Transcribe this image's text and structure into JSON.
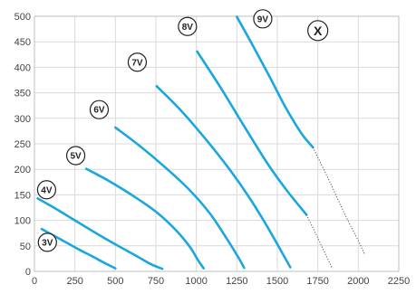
{
  "chart_data": {
    "type": "line",
    "title": "",
    "xlabel": "",
    "ylabel": "",
    "xlim": [
      0,
      2250
    ],
    "ylim": [
      0,
      500
    ],
    "x_ticks": [
      0,
      250,
      500,
      750,
      1000,
      1250,
      1500,
      1750,
      2000,
      2250
    ],
    "y_ticks": [
      0,
      50,
      100,
      150,
      200,
      250,
      300,
      350,
      400,
      450,
      500
    ],
    "x_tick_labels": [
      "0",
      "250",
      "500",
      "750",
      "1000",
      "1250",
      "1500",
      "1750",
      "2000",
      "2250"
    ],
    "y_tick_labels": [
      "0",
      "50",
      "100",
      "150",
      "200",
      "250",
      "300",
      "350",
      "400",
      "450",
      "500"
    ],
    "grid": true,
    "line_color": "#1AA7E0",
    "dotted_color": "#555555",
    "series": [
      {
        "name": "3V",
        "label_at": [
          80,
          57
        ],
        "points": [
          [
            45,
            83
          ],
          [
            120,
            70
          ],
          [
            200,
            56
          ],
          [
            280,
            42
          ],
          [
            360,
            29
          ],
          [
            430,
            17
          ],
          [
            500,
            6
          ]
        ]
      },
      {
        "name": "4V",
        "label_at": [
          75,
          160
        ],
        "points": [
          [
            20,
            143
          ],
          [
            120,
            125
          ],
          [
            250,
            100
          ],
          [
            380,
            75
          ],
          [
            500,
            53
          ],
          [
            620,
            32
          ],
          [
            720,
            14
          ],
          [
            790,
            5
          ]
        ]
      },
      {
        "name": "5V",
        "label_at": [
          255,
          227
        ],
        "points": [
          [
            320,
            201
          ],
          [
            450,
            179
          ],
          [
            600,
            150
          ],
          [
            750,
            117
          ],
          [
            870,
            82
          ],
          [
            960,
            48
          ],
          [
            1010,
            22
          ],
          [
            1045,
            6
          ]
        ]
      },
      {
        "name": "6V",
        "label_at": [
          400,
          317
        ],
        "points": [
          [
            500,
            282
          ],
          [
            650,
            246
          ],
          [
            800,
            206
          ],
          [
            950,
            162
          ],
          [
            1080,
            115
          ],
          [
            1180,
            68
          ],
          [
            1260,
            27
          ],
          [
            1295,
            7
          ]
        ]
      },
      {
        "name": "7V",
        "label_at": [
          635,
          410
        ],
        "points": [
          [
            755,
            363
          ],
          [
            900,
            317
          ],
          [
            1050,
            262
          ],
          [
            1200,
            202
          ],
          [
            1320,
            148
          ],
          [
            1430,
            92
          ],
          [
            1520,
            42
          ],
          [
            1580,
            8
          ]
        ]
      },
      {
        "name": "8V",
        "label_at": [
          945,
          480
        ],
        "points": [
          [
            1005,
            431
          ],
          [
            1150,
            360
          ],
          [
            1300,
            282
          ],
          [
            1440,
            211
          ],
          [
            1560,
            158
          ],
          [
            1680,
            111
          ]
        ],
        "dotted": [
          [
            1680,
            111
          ],
          [
            1740,
            72
          ],
          [
            1800,
            32
          ],
          [
            1840,
            5
          ]
        ]
      },
      {
        "name": "9V",
        "label_at": [
          1410,
          495
        ],
        "points": [
          [
            1250,
            499
          ],
          [
            1350,
            442
          ],
          [
            1450,
            383
          ],
          [
            1550,
            322
          ],
          [
            1650,
            270
          ],
          [
            1720,
            243
          ]
        ],
        "dotted": [
          [
            1720,
            243
          ],
          [
            1820,
            178
          ],
          [
            1920,
            110
          ],
          [
            2000,
            60
          ],
          [
            2040,
            33
          ]
        ]
      }
    ],
    "annotations": [
      {
        "text": "X",
        "at": [
          1750,
          472
        ]
      }
    ]
  }
}
